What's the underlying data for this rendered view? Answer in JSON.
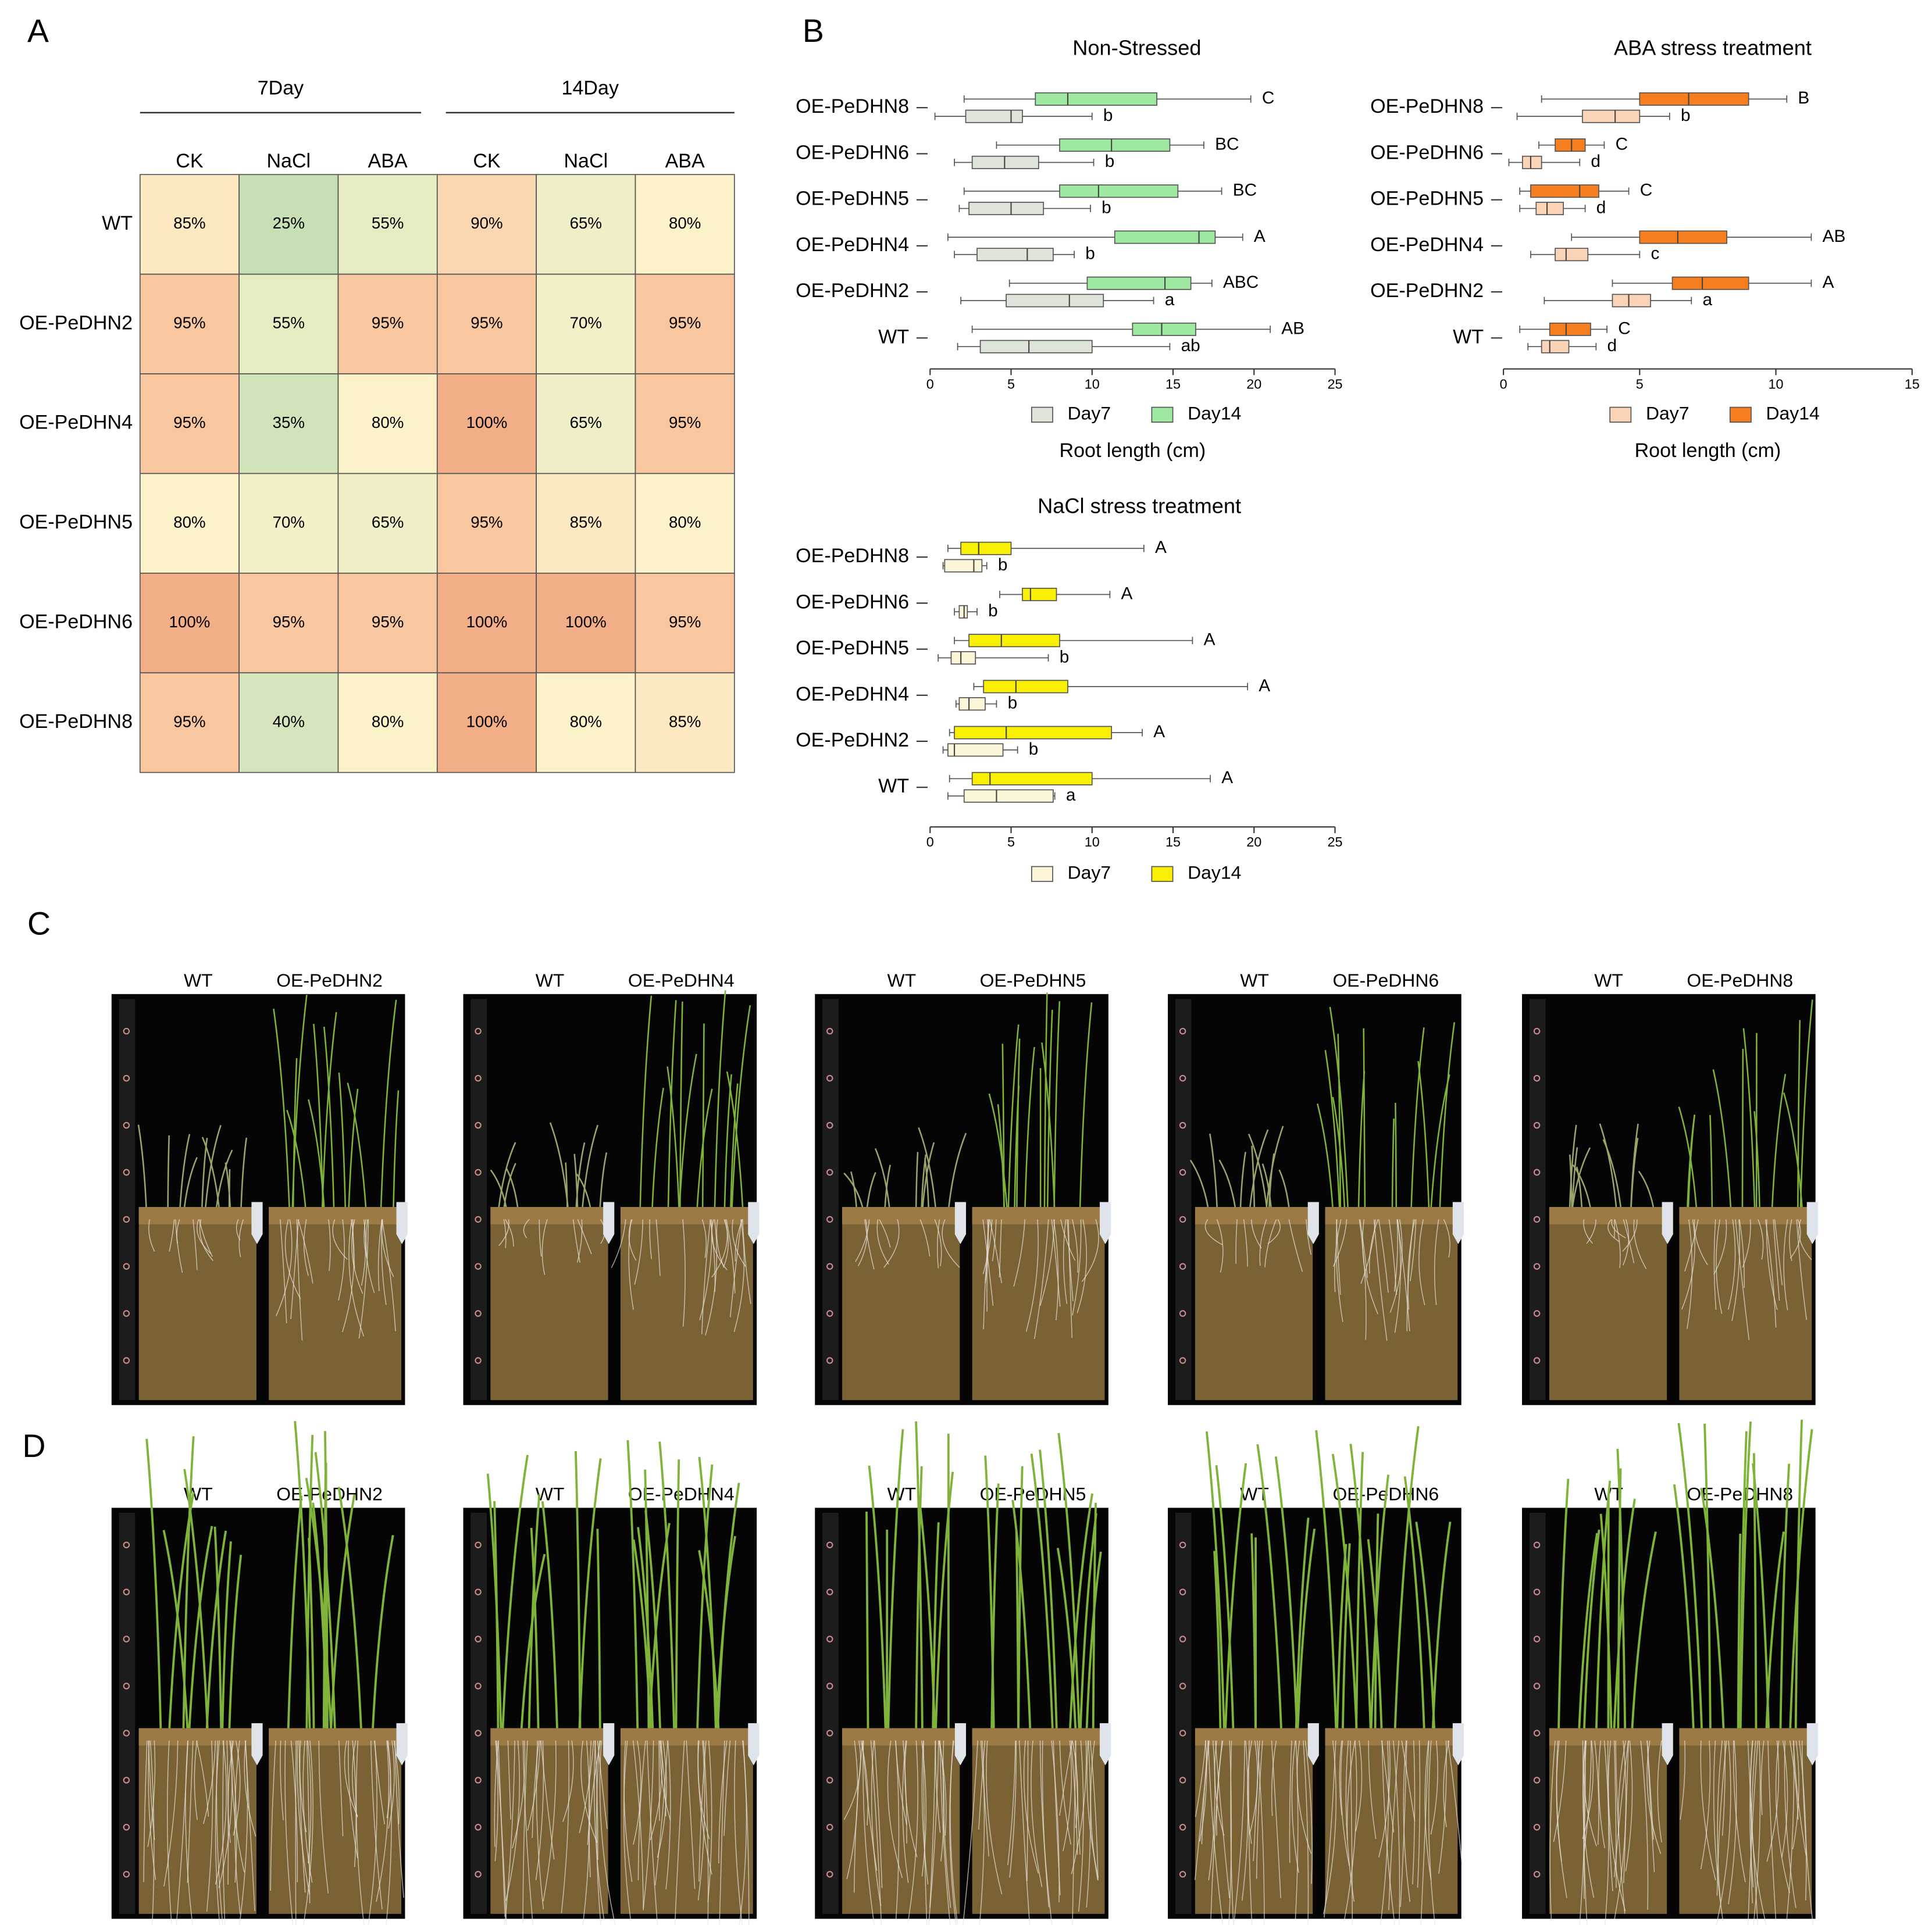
{
  "panel_labels": [
    "A",
    "B",
    "C",
    "D"
  ],
  "chart_data": [
    {
      "type": "heatmap",
      "group_labels": [
        "7Day",
        "14Day"
      ],
      "columns": [
        "CK",
        "NaCl",
        "ABA",
        "CK",
        "NaCl",
        "ABA"
      ],
      "rows": [
        "WT",
        "OE-PeDHN2",
        "OE-PeDHN4",
        "OE-PeDHN5",
        "OE-PeDHN6",
        "OE-PeDHN8"
      ],
      "values": [
        [
          85,
          25,
          55,
          90,
          65,
          80
        ],
        [
          95,
          55,
          95,
          95,
          70,
          95
        ],
        [
          95,
          35,
          80,
          100,
          65,
          95
        ],
        [
          80,
          70,
          65,
          95,
          85,
          80
        ],
        [
          100,
          95,
          95,
          100,
          100,
          95
        ],
        [
          95,
          40,
          80,
          100,
          80,
          85
        ]
      ],
      "value_labels": [
        [
          "85%",
          "25%",
          "55%",
          "90%",
          "65%",
          "80%"
        ],
        [
          "95%",
          "55%",
          "95%",
          "95%",
          "70%",
          "95%"
        ],
        [
          "95%",
          "35%",
          "80%",
          "100%",
          "65%",
          "95%"
        ],
        [
          "80%",
          "70%",
          "65%",
          "95%",
          "85%",
          "80%"
        ],
        [
          "100%",
          "95%",
          "95%",
          "100%",
          "100%",
          "95%"
        ],
        [
          "95%",
          "40%",
          "80%",
          "100%",
          "80%",
          "85%"
        ]
      ]
    },
    {
      "type": "box",
      "title": "Non-Stressed",
      "xlabel": "Root length (cm)",
      "xlim": [
        0,
        25
      ],
      "xticks": [
        0,
        5,
        10,
        15,
        20,
        25
      ],
      "categories": [
        "OE-PeDHN8",
        "OE-PeDHN6",
        "OE-PeDHN5",
        "OE-PeDHN4",
        "OE-PeDHN2",
        "WT"
      ],
      "series": [
        {
          "name": "Day7",
          "color": "#dde5da",
          "values": [
            [
              0.3,
              2.2,
              5.0,
              5.7,
              10.0
            ],
            [
              1.5,
              2.6,
              4.6,
              6.7,
              10.1
            ],
            [
              1.8,
              2.4,
              5.0,
              7.0,
              9.9
            ],
            [
              1.5,
              2.9,
              6.0,
              7.6,
              8.9
            ],
            [
              1.9,
              4.7,
              8.6,
              10.7,
              13.8
            ],
            [
              1.7,
              3.1,
              6.1,
              10.0,
              14.8
            ]
          ],
          "letters": [
            "b",
            "b",
            "b",
            "b",
            "a",
            "ab"
          ]
        },
        {
          "name": "Day14",
          "color": "#9fe8a0",
          "values": [
            [
              2.1,
              6.5,
              8.5,
              14.0,
              19.8
            ],
            [
              4.1,
              8.0,
              11.2,
              14.8,
              16.9
            ],
            [
              2.1,
              8.0,
              10.4,
              15.3,
              18.0
            ],
            [
              1.1,
              11.4,
              16.6,
              17.6,
              19.3
            ],
            [
              4.9,
              9.7,
              14.5,
              16.1,
              17.4
            ],
            [
              2.6,
              12.5,
              14.3,
              16.4,
              21.0
            ]
          ],
          "letters": [
            "C",
            "BC",
            "BC",
            "A",
            "ABC",
            "AB"
          ]
        }
      ]
    },
    {
      "type": "box",
      "title": "ABA stress treatment",
      "xlabel": "Root length (cm)",
      "xlim": [
        0,
        15
      ],
      "xticks": [
        0,
        5,
        10,
        15
      ],
      "categories": [
        "OE-PeDHN8",
        "OE-PeDHN6",
        "OE-PeDHN5",
        "OE-PeDHN4",
        "OE-PeDHN2",
        "WT"
      ],
      "series": [
        {
          "name": "Day7",
          "color": "#fbd3b6",
          "values": [
            [
              0.5,
              2.9,
              4.1,
              5.0,
              6.1
            ],
            [
              0.2,
              0.7,
              1.0,
              1.4,
              2.8
            ],
            [
              0.6,
              1.2,
              1.6,
              2.2,
              3.0
            ],
            [
              1.0,
              1.9,
              2.3,
              3.1,
              5.0
            ],
            [
              1.5,
              4.0,
              4.6,
              5.4,
              6.9
            ],
            [
              0.9,
              1.4,
              1.7,
              2.4,
              3.4
            ]
          ],
          "letters": [
            "b",
            "d",
            "d",
            "c",
            "a",
            "d"
          ]
        },
        {
          "name": "Day14",
          "color": "#f67e1f",
          "values": [
            [
              1.4,
              5.0,
              6.8,
              9.0,
              10.4
            ],
            [
              1.3,
              1.9,
              2.5,
              3.0,
              3.7
            ],
            [
              0.6,
              1.0,
              2.8,
              3.5,
              4.6
            ],
            [
              2.5,
              5.0,
              6.4,
              8.2,
              11.3
            ],
            [
              4.0,
              6.2,
              7.3,
              9.0,
              11.3
            ],
            [
              0.6,
              1.7,
              2.3,
              3.2,
              3.8
            ]
          ],
          "letters": [
            "B",
            "C",
            "C",
            "AB",
            "A",
            "C"
          ]
        }
      ]
    },
    {
      "type": "box",
      "title": "NaCl stress treatment",
      "xlim": [
        0,
        25
      ],
      "xticks": [
        0,
        5,
        10,
        15,
        20,
        25
      ],
      "categories": [
        "OE-PeDHN8",
        "OE-PeDHN6",
        "OE-PeDHN5",
        "OE-PeDHN4",
        "OE-PeDHN2",
        "WT"
      ],
      "series": [
        {
          "name": "Day7",
          "color": "#fbf6d8",
          "values": [
            [
              0.8,
              0.9,
              2.7,
              3.2,
              3.5
            ],
            [
              1.5,
              1.8,
              2.1,
              2.3,
              2.9
            ],
            [
              0.5,
              1.3,
              1.9,
              2.8,
              7.3
            ],
            [
              1.6,
              1.8,
              2.4,
              3.4,
              4.1
            ],
            [
              0.8,
              1.1,
              1.5,
              4.5,
              5.4
            ],
            [
              1.1,
              2.1,
              4.1,
              7.6,
              7.7
            ]
          ],
          "letters": [
            "b",
            "b",
            "b",
            "b",
            "b",
            "a"
          ]
        },
        {
          "name": "Day14",
          "color": "#f8f000",
          "values": [
            [
              1.1,
              1.9,
              3.0,
              5.0,
              13.2
            ],
            [
              4.3,
              5.7,
              6.2,
              7.8,
              11.1
            ],
            [
              1.5,
              2.4,
              4.4,
              8.0,
              16.2
            ],
            [
              2.7,
              3.3,
              5.3,
              8.5,
              19.6
            ],
            [
              1.2,
              1.5,
              4.7,
              11.2,
              13.1
            ],
            [
              1.2,
              2.6,
              3.7,
              10.0,
              17.3
            ]
          ],
          "letters": [
            "A",
            "A",
            "A",
            "A",
            "A",
            "A"
          ]
        }
      ]
    }
  ],
  "photo_panels": [
    {
      "pairs": [
        [
          "WT",
          "OE-PeDHN2"
        ],
        [
          "WT",
          "OE-PeDHN4"
        ],
        [
          "WT",
          "OE-PeDHN5"
        ],
        [
          "WT",
          "OE-PeDHN6"
        ],
        [
          "WT",
          "OE-PeDHN8"
        ]
      ]
    },
    {
      "pairs": [
        [
          "WT",
          "OE-PeDHN2"
        ],
        [
          "WT",
          "OE-PeDHN4"
        ],
        [
          "WT",
          "OE-PeDHN5"
        ],
        [
          "WT",
          "OE-PeDHN6"
        ],
        [
          "WT",
          "OE-PeDHN8"
        ]
      ]
    }
  ]
}
